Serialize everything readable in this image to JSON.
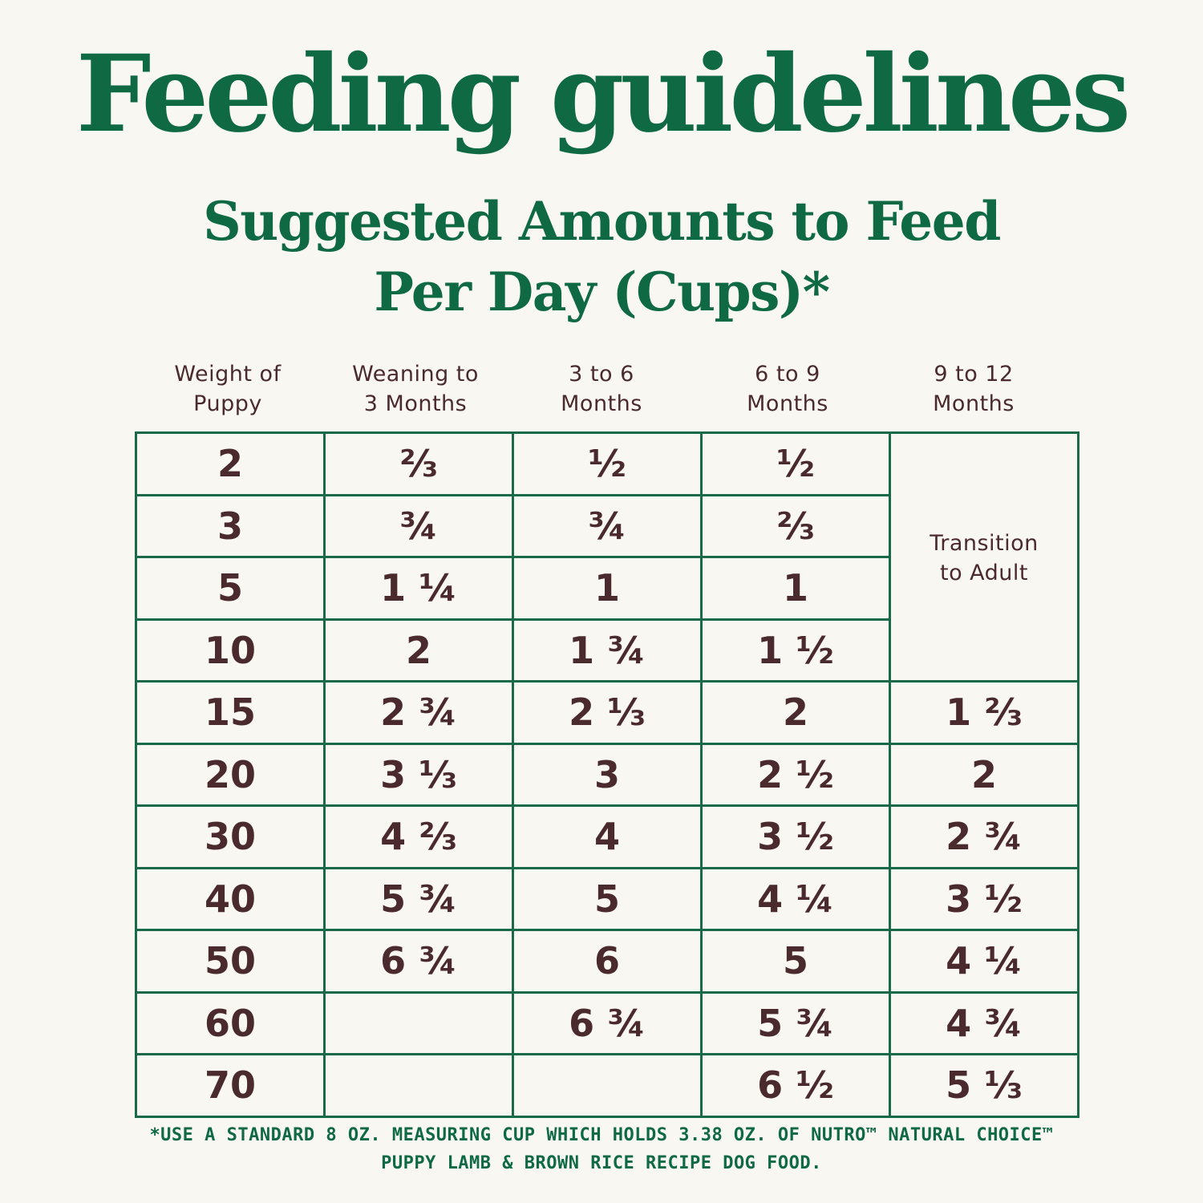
{
  "title": "Feeding guidelines",
  "subtitle": {
    "line1": "Suggested Amounts to Feed",
    "line2": "Per Day (Cups)*"
  },
  "table": {
    "headers": [
      {
        "line1": "Weight of",
        "line2": "Puppy"
      },
      {
        "line1": "Weaning to",
        "line2": "3 Months"
      },
      {
        "line1": "3 to 6",
        "line2": "Months"
      },
      {
        "line1": "6 to 9",
        "line2": "Months"
      },
      {
        "line1": "9 to 12",
        "line2": "Months"
      }
    ],
    "transition_note": {
      "line1": "Transition",
      "line2": "to Adult"
    },
    "rows": [
      {
        "weight": "2",
        "weaning": "⅔",
        "m3_6": "½",
        "m6_9": "½",
        "m9_12": ""
      },
      {
        "weight": "3",
        "weaning": "¾",
        "m3_6": "¾",
        "m6_9": "⅔",
        "m9_12": ""
      },
      {
        "weight": "5",
        "weaning": "1 ¼",
        "m3_6": "1",
        "m6_9": "1",
        "m9_12": ""
      },
      {
        "weight": "10",
        "weaning": "2",
        "m3_6": "1 ¾",
        "m6_9": "1 ½",
        "m9_12": ""
      },
      {
        "weight": "15",
        "weaning": "2 ¾",
        "m3_6": "2 ⅓",
        "m6_9": "2",
        "m9_12": "1 ⅔"
      },
      {
        "weight": "20",
        "weaning": "3 ⅓",
        "m3_6": "3",
        "m6_9": "2 ½",
        "m9_12": "2"
      },
      {
        "weight": "30",
        "weaning": "4 ⅔",
        "m3_6": "4",
        "m6_9": "3 ½",
        "m9_12": "2 ¾"
      },
      {
        "weight": "40",
        "weaning": "5 ¾",
        "m3_6": "5",
        "m6_9": "4 ¼",
        "m9_12": "3 ½"
      },
      {
        "weight": "50",
        "weaning": "6 ¾",
        "m3_6": "6",
        "m6_9": "5",
        "m9_12": "4 ¼"
      },
      {
        "weight": "60",
        "weaning": "",
        "m3_6": "6 ¾",
        "m6_9": "5 ¾",
        "m9_12": "4 ¾"
      },
      {
        "weight": "70",
        "weaning": "",
        "m3_6": "",
        "m6_9": "6 ½",
        "m9_12": "5 ⅓"
      }
    ]
  },
  "footnote": {
    "line1": "*USE A STANDARD 8 OZ. MEASURING CUP WHICH HOLDS 3.38 OZ. OF NUTRO™ NATURAL CHOICE™",
    "line2": "PUPPY LAMB & BROWN RICE RECIPE DOG FOOD."
  },
  "colors": {
    "background": "#f8f7f2",
    "green": "#0f6a44",
    "border": "#1a6a4a",
    "text": "#4a2a2c"
  }
}
